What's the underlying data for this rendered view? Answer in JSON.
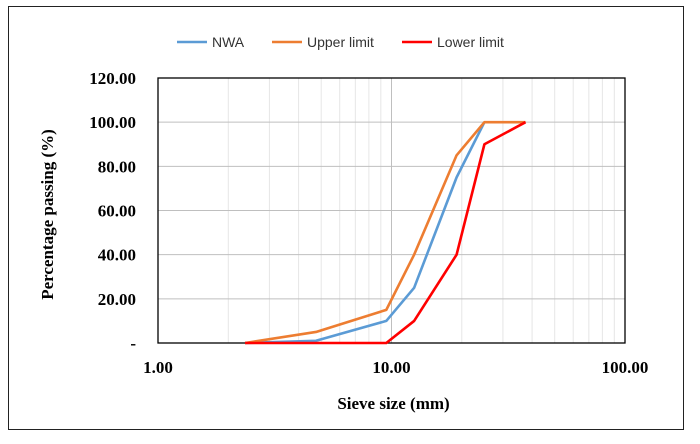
{
  "chart_data": {
    "type": "line",
    "title": "",
    "xlabel": "Sieve size (mm)",
    "ylabel": "Percentage passing (%)",
    "x_scale": "log",
    "xlim": [
      1,
      100
    ],
    "ylim": [
      0,
      120
    ],
    "x_ticks": [
      {
        "value": 1,
        "label": "1.00"
      },
      {
        "value": 10,
        "label": "10.00"
      },
      {
        "value": 100,
        "label": "100.00"
      }
    ],
    "y_ticks": [
      {
        "value": 0,
        "label": "-"
      },
      {
        "value": 20,
        "label": "20.00"
      },
      {
        "value": 40,
        "label": "40.00"
      },
      {
        "value": 60,
        "label": "60.00"
      },
      {
        "value": 80,
        "label": "80.00"
      },
      {
        "value": 100,
        "label": "100.00"
      },
      {
        "value": 120,
        "label": "120.00"
      }
    ],
    "grid": {
      "major": true,
      "minor_x": true
    },
    "legend_position": "top",
    "series": [
      {
        "name": "NWA",
        "color": "#5b9bd5",
        "points": [
          [
            2.36,
            0
          ],
          [
            4.75,
            1
          ],
          [
            9.5,
            10
          ],
          [
            12.5,
            25
          ],
          [
            19,
            75
          ],
          [
            25,
            100
          ]
        ]
      },
      {
        "name": "Upper limit",
        "color": "#ed7d31",
        "points": [
          [
            2.36,
            0
          ],
          [
            4.75,
            5
          ],
          [
            9.5,
            15
          ],
          [
            12.5,
            40
          ],
          [
            19,
            85
          ],
          [
            25,
            100
          ],
          [
            37.5,
            100
          ]
        ]
      },
      {
        "name": "Lower limit",
        "color": "#ff0000",
        "points": [
          [
            2.36,
            0
          ],
          [
            4.75,
            0
          ],
          [
            9.5,
            0
          ],
          [
            12.5,
            10
          ],
          [
            19,
            40
          ],
          [
            25,
            90
          ],
          [
            37.5,
            100
          ]
        ]
      }
    ]
  }
}
